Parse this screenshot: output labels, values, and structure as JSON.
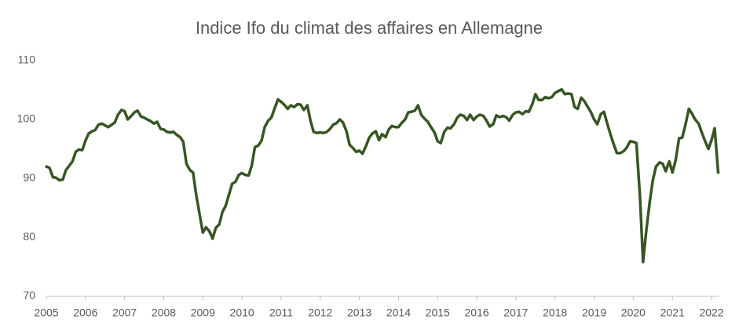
{
  "chart_data": {
    "type": "line",
    "title": "Indice Ifo du climat des affaires en Allemagne",
    "x": [
      2005,
      2005.08,
      2005.17,
      2005.25,
      2005.33,
      2005.42,
      2005.5,
      2005.58,
      2005.67,
      2005.75,
      2005.83,
      2005.92,
      2006,
      2006.08,
      2006.17,
      2006.25,
      2006.33,
      2006.42,
      2006.5,
      2006.58,
      2006.67,
      2006.75,
      2006.83,
      2006.92,
      2007,
      2007.08,
      2007.17,
      2007.25,
      2007.33,
      2007.42,
      2007.5,
      2007.58,
      2007.67,
      2007.75,
      2007.83,
      2007.92,
      2008,
      2008.08,
      2008.17,
      2008.25,
      2008.33,
      2008.42,
      2008.5,
      2008.58,
      2008.67,
      2008.75,
      2008.83,
      2008.92,
      2009,
      2009.08,
      2009.17,
      2009.25,
      2009.33,
      2009.42,
      2009.5,
      2009.58,
      2009.67,
      2009.75,
      2009.83,
      2009.92,
      2010,
      2010.08,
      2010.17,
      2010.25,
      2010.33,
      2010.42,
      2010.5,
      2010.58,
      2010.67,
      2010.75,
      2010.83,
      2010.92,
      2011,
      2011.08,
      2011.17,
      2011.25,
      2011.33,
      2011.42,
      2011.5,
      2011.58,
      2011.67,
      2011.75,
      2011.83,
      2011.92,
      2012,
      2012.08,
      2012.17,
      2012.25,
      2012.33,
      2012.42,
      2012.5,
      2012.58,
      2012.67,
      2012.75,
      2012.83,
      2012.92,
      2013,
      2013.08,
      2013.17,
      2013.25,
      2013.33,
      2013.42,
      2013.5,
      2013.58,
      2013.67,
      2013.75,
      2013.83,
      2013.92,
      2014,
      2014.08,
      2014.17,
      2014.25,
      2014.33,
      2014.42,
      2014.5,
      2014.58,
      2014.67,
      2014.75,
      2014.83,
      2014.92,
      2015,
      2015.08,
      2015.17,
      2015.25,
      2015.33,
      2015.42,
      2015.5,
      2015.58,
      2015.67,
      2015.75,
      2015.83,
      2015.92,
      2016,
      2016.08,
      2016.17,
      2016.25,
      2016.33,
      2016.42,
      2016.5,
      2016.58,
      2016.67,
      2016.75,
      2016.83,
      2016.92,
      2017,
      2017.08,
      2017.17,
      2017.25,
      2017.33,
      2017.42,
      2017.5,
      2017.58,
      2017.67,
      2017.75,
      2017.83,
      2017.92,
      2018,
      2018.08,
      2018.17,
      2018.25,
      2018.33,
      2018.42,
      2018.5,
      2018.58,
      2018.67,
      2018.75,
      2018.83,
      2018.92,
      2019,
      2019.08,
      2019.17,
      2019.25,
      2019.33,
      2019.42,
      2019.5,
      2019.58,
      2019.67,
      2019.75,
      2019.83,
      2019.92,
      2020,
      2020.08,
      2020.17,
      2020.25,
      2020.33,
      2020.42,
      2020.5,
      2020.58,
      2020.67,
      2020.75,
      2020.83,
      2020.92,
      2021,
      2021.08,
      2021.17,
      2021.25,
      2021.33,
      2021.42,
      2021.5,
      2021.58,
      2021.67,
      2021.75,
      2021.83,
      2021.92,
      2022,
      2022.08,
      2022.17
    ],
    "series": [
      {
        "color": "#375623",
        "values": [
          92,
          91.8,
          90.2,
          90.1,
          89.7,
          89.8,
          91.4,
          92.1,
          92.9,
          94.5,
          94.9,
          94.8,
          96.4,
          97.6,
          98,
          98.2,
          99.1,
          99.3,
          99,
          98.7,
          99.1,
          99.5,
          100.8,
          101.6,
          101.4,
          100,
          100.6,
          101.2,
          101.5,
          100.5,
          100.3,
          100,
          99.7,
          99.3,
          99.6,
          98.4,
          98.3,
          97.9,
          97.8,
          97.9,
          97.4,
          97,
          96.2,
          92.5,
          91.4,
          91,
          87.2,
          83.8,
          80.8,
          81.7,
          81,
          79.8,
          81.6,
          82.2,
          84.3,
          85.3,
          87.3,
          89.1,
          89.4,
          90.6,
          90.9,
          90.6,
          90.5,
          92.2,
          95.3,
          95.6,
          96.4,
          98.7,
          99.8,
          100.3,
          101.8,
          103.4,
          103,
          102.5,
          101.8,
          102.4,
          102.1,
          102.6,
          102.5,
          101.6,
          102.4,
          99.8,
          97.9,
          97.7,
          97.8,
          97.7,
          97.9,
          98.4,
          99.1,
          99.4,
          100,
          99.5,
          98,
          95.7,
          95.2,
          94.5,
          94.7,
          94.2,
          95.5,
          96.9,
          97.6,
          98,
          96.5,
          97.5,
          97,
          98.3,
          98.9,
          98.7,
          98.7,
          99.4,
          100,
          101.2,
          101.3,
          101.5,
          102.4,
          100.8,
          100.1,
          99.6,
          98.7,
          97.8,
          96.3,
          96,
          97.9,
          98.6,
          98.5,
          99.2,
          100.3,
          100.8,
          100.6,
          99.9,
          100.8,
          99.9,
          100.5,
          100.8,
          100.6,
          99.8,
          98.8,
          99.2,
          100.7,
          100.4,
          100.6,
          100.4,
          99.8,
          100.8,
          101.2,
          101.3,
          100.9,
          101.4,
          101.3,
          102.6,
          104.3,
          103.3,
          103.3,
          103.8,
          103.6,
          103.8,
          104.5,
          104.8,
          105.1,
          104.3,
          104.4,
          104.3,
          102.1,
          101.8,
          103.7,
          103.1,
          102.2,
          101.2,
          100,
          99.2,
          100.9,
          101.3,
          99.4,
          97.4,
          95.8,
          94.3,
          94.3,
          94.6,
          95.2,
          96.3,
          96.2,
          96,
          87,
          75.8,
          81,
          86,
          89.7,
          92,
          92.7,
          92.5,
          91.2,
          92.9,
          91,
          93,
          96.8,
          96.9,
          99,
          101.8,
          101,
          100,
          99.3,
          97.8,
          96.4,
          95,
          96.5,
          98.5,
          91
        ]
      }
    ],
    "xlim": [
      2005,
      2022.2
    ],
    "xticks": [
      2005,
      2006,
      2007,
      2008,
      2009,
      2010,
      2011,
      2012,
      2013,
      2014,
      2015,
      2016,
      2017,
      2018,
      2019,
      2020,
      2021,
      2022
    ],
    "ylim": [
      70,
      110
    ],
    "yticks": [
      70,
      80,
      90,
      100,
      110
    ],
    "grid": false
  }
}
